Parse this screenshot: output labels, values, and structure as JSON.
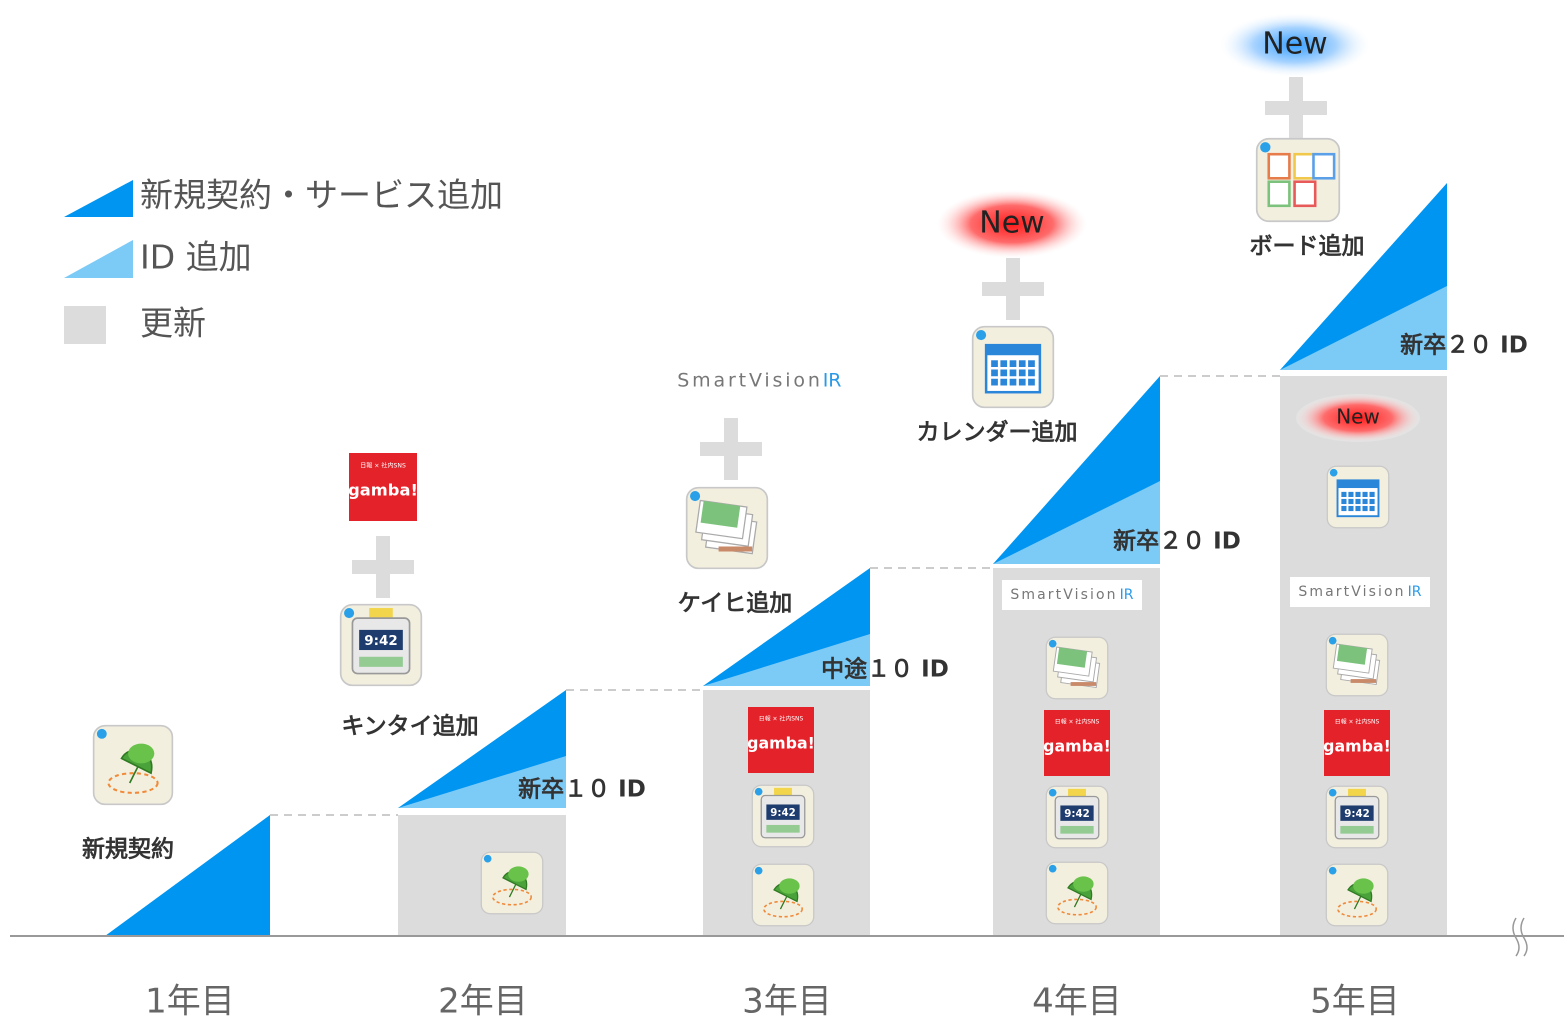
{
  "legend": [
    "新規契約・サービス追加",
    "ID 追加",
    "更新"
  ],
  "years": [
    "1年目",
    "2年目",
    "3年目",
    "4年目",
    "5年目"
  ],
  "steps": [
    "新規契約",
    "キンタイ追加",
    "ケイヒ追加",
    "カレンダー追加",
    "ボード追加"
  ],
  "id_labels": [
    "新卒１０ ID",
    "中途１０ ID",
    "新卒２０ ID",
    "新卒２０ ID"
  ],
  "badge": "New",
  "logos": {
    "smartvision": "SmartVision",
    "smartvision_suffix": "IR",
    "gamba": "gamba!",
    "gamba_tag": "日報 × 社内SNS",
    "clock": "9:42"
  }
}
